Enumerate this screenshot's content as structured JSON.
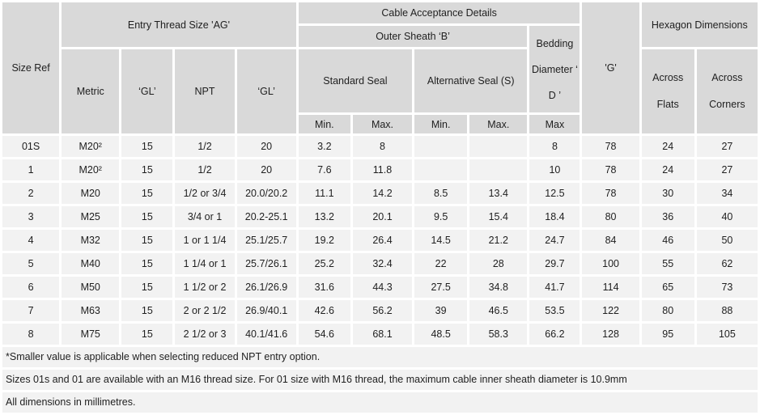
{
  "table": {
    "header": {
      "size_ref": "Size Ref",
      "entry_thread": "Entry Thread Size 'AG'",
      "cable_acceptance": "Cable Acceptance Details",
      "outer_sheath": "Outer Sheath ‘B’",
      "bedding_diameter": "Bedding Diameter ‘ D ’",
      "g": "'G'",
      "hexagon": "Hexagon Dimensions",
      "metric": "Metric",
      "gl_metric": "‘GL’",
      "npt": "NPT",
      "gl_npt": "‘GL’",
      "standard_seal": "Standard Seal",
      "alternative_seal": "Alternative Seal (S)",
      "across_flats": "Across Flats",
      "across_corners": "Across Corners",
      "std_min": "Min.",
      "std_max": "Max.",
      "alt_min": "Min.",
      "alt_max": "Max.",
      "bedding_max": "Max"
    },
    "columns": [
      "size-ref",
      "metric",
      "gl-metric",
      "npt",
      "gl-npt",
      "std-seal-min",
      "std-seal-max",
      "alt-seal-min",
      "alt-seal-max",
      "bedding-max",
      "g",
      "across-flats",
      "across-corners"
    ],
    "rows": [
      [
        "01S",
        "M20²",
        "15",
        "1/2",
        "20",
        "3.2",
        "8",
        "",
        "",
        "8",
        "78",
        "24",
        "27"
      ],
      [
        "1",
        "M20²",
        "15",
        "1/2",
        "20",
        "7.6",
        "11.8",
        "",
        "",
        "10",
        "78",
        "24",
        "27"
      ],
      [
        "2",
        "M20",
        "15",
        "1/2 or 3/4",
        "20.0/20.2",
        "11.1",
        "14.2",
        "8.5",
        "13.4",
        "12.5",
        "78",
        "30",
        "34"
      ],
      [
        "3",
        "M25",
        "15",
        "3/4 or 1",
        "20.2-25.1",
        "13.2",
        "20.1",
        "9.5",
        "15.4",
        "18.4",
        "80",
        "36",
        "40"
      ],
      [
        "4",
        "M32",
        "15",
        "1 or 1 1/4",
        "25.1/25.7",
        "19.2",
        "26.4",
        "14.5",
        "21.2",
        "24.7",
        "84",
        "46",
        "50"
      ],
      [
        "5",
        "M40",
        "15",
        "1 1/4 or 1",
        "25.7/26.1",
        "25.2",
        "32.4",
        "22",
        "28",
        "29.7",
        "100",
        "55",
        "62"
      ],
      [
        "6",
        "M50",
        "15",
        "1 1/2 or 2",
        "26.1/26.9",
        "31.6",
        "44.3",
        "27.5",
        "34.8",
        "41.7",
        "114",
        "65",
        "73"
      ],
      [
        "7",
        "M63",
        "15",
        "2 or 2 1/2",
        "26.9/40.1",
        "42.6",
        "56.2",
        "39",
        "46.5",
        "53.5",
        "122",
        "80",
        "88"
      ],
      [
        "8",
        "M75",
        "15",
        "2 1/2 or 3",
        "40.1/41.6",
        "54.6",
        "68.1",
        "48.5",
        "58.3",
        "66.2",
        "128",
        "95",
        "105"
      ]
    ],
    "notes": [
      "*Smaller value is applicable when selecting reduced NPT entry option.",
      "Sizes 01s and 01 are available with an M16 thread size. For 01 size with M16 thread, the maximum cable inner sheath diameter is 10.9mm",
      "All dimensions in millimetres."
    ]
  },
  "colors": {
    "header_bg": "#d9d9d9",
    "row_bg": "#f2f2f2",
    "gap": "#ffffff",
    "text": "#1f1f1f"
  }
}
